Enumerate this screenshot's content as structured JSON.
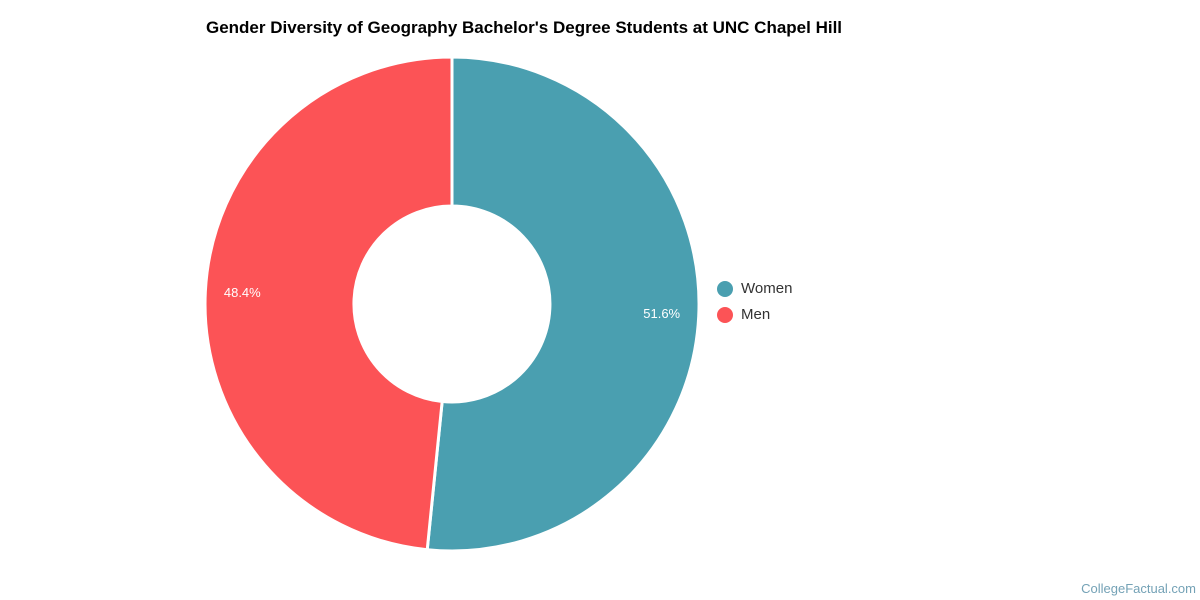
{
  "page": {
    "background": "#ffffff",
    "footer_text": "CollegeFactual.com",
    "footer_color": "#74A2B6"
  },
  "chart_data": {
    "type": "pie",
    "subtype": "donut",
    "title": "Gender Diversity of Geography Bachelor's Degree Students at UNC Chapel Hill",
    "start_angle_deg": 0,
    "direction": "clockwise",
    "legend_position": "right",
    "label_color": "#ffffff",
    "slice_border_color": "#ffffff",
    "series": [
      {
        "name": "Women",
        "value": 51.6,
        "label": "51.6%",
        "color": "#4A9FB0"
      },
      {
        "name": "Men",
        "value": 48.4,
        "label": "48.4%",
        "color": "#FC5356"
      }
    ]
  }
}
